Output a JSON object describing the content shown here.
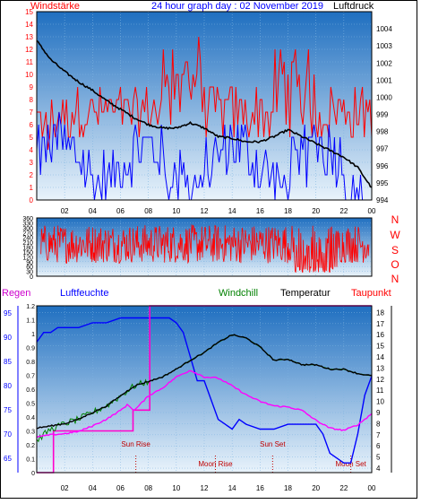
{
  "header": {
    "left_label": "Windstärke",
    "title": "24 hour graph day : 02 November 2019",
    "right_label": "Luftdruck"
  },
  "legend2": {
    "regen": "Regen",
    "luftfeuchte": "Luftfeuchte",
    "windchill": "Windchill",
    "temperatur": "Temperatur",
    "taupunkt": "Taupunkt"
  },
  "directions": [
    "N",
    "W",
    "S",
    "O",
    "N"
  ],
  "events": [
    {
      "label": "Sun Rise",
      "hour": 7.1
    },
    {
      "label": "Moon Rise",
      "hour": 12.8
    },
    {
      "label": "Sun Set",
      "hour": 16.9
    },
    {
      "label": "Moon Set",
      "hour": 22.5
    }
  ],
  "colors": {
    "wind_speed": "#ff0000",
    "wind_gust_base": "#0000ff",
    "pressure": "#000000",
    "direction": "#ff0000",
    "humidity": "#0000ff",
    "rain": "#ff00cc",
    "windchill": "#008000",
    "temperature": "#000000",
    "dewpoint": "#ff00ff",
    "panel_top": "#1f6fc0",
    "panel_bottom": "#e9f3fb"
  },
  "chart_data": [
    {
      "type": "line",
      "x_ticks": [
        "02",
        "04",
        "06",
        "08",
        "10",
        "12",
        "14",
        "16",
        "18",
        "20",
        "22",
        "00"
      ],
      "y_left_ticks": [
        0,
        1,
        2,
        3,
        4,
        5,
        6,
        7,
        8,
        9,
        10,
        11,
        12,
        13,
        14,
        15
      ],
      "y_left_label": "Windstärke",
      "y_left_range": [
        0,
        15
      ],
      "y_right_ticks": [
        994,
        995,
        996,
        997,
        998,
        999,
        1000,
        1001,
        1002,
        1003,
        1004
      ],
      "y_right_label": "Luftdruck",
      "y_right_range": [
        994,
        1005
      ],
      "series": [
        {
          "name": "Luftdruck",
          "axis": "right",
          "hours": [
            0,
            1,
            2,
            3,
            4,
            5,
            6,
            7,
            8,
            9,
            10,
            11,
            12,
            13,
            14,
            15,
            16,
            17,
            18,
            19,
            20,
            21,
            22,
            23,
            24
          ],
          "values": [
            1003.3,
            1002.2,
            1001.5,
            1000.9,
            1000.4,
            999.8,
            999.3,
            998.8,
            998.4,
            998.2,
            998.2,
            998.5,
            998.2,
            997.7,
            997.6,
            997.4,
            997.4,
            997.7,
            998.1,
            997.7,
            997.3,
            996.9,
            996.5,
            995.9,
            994.7
          ]
        }
      ]
    },
    {
      "type": "line",
      "x_ticks": [],
      "y_left_ticks": [
        0,
        30,
        60,
        90,
        120,
        150,
        180,
        210,
        240,
        270,
        300,
        330,
        360
      ],
      "y_left_range": [
        0,
        360
      ],
      "y_right_labels": [
        "N",
        "W",
        "S",
        "O",
        "N"
      ]
    },
    {
      "type": "line",
      "x_ticks": [
        "02",
        "04",
        "06",
        "08",
        "10",
        "12",
        "14",
        "16",
        "18",
        "20",
        "22",
        "00"
      ],
      "y_left_ticks": [
        65,
        70,
        75,
        80,
        85,
        90,
        95
      ],
      "y_left_label": "Luftfeuchte",
      "y_left_range": [
        62,
        96.5
      ],
      "y_rain_ticks": [
        0,
        0.1,
        0.2,
        0.3,
        0.4,
        0.5,
        0.6,
        0.7,
        0.8,
        0.9,
        1,
        1.1,
        1.2
      ],
      "y_rain_label": "Regen",
      "y_rain_range": [
        0,
        1.2
      ],
      "y_right_ticks": [
        4,
        5,
        6,
        7,
        8,
        9,
        10,
        11,
        12,
        13,
        14,
        15,
        16,
        17,
        18
      ],
      "y_right_label": "Temperatur",
      "y_right_range": [
        3.6,
        18.6
      ],
      "series": [
        {
          "name": "Luftfeuchte",
          "hours": [
            0,
            0.5,
            1,
            1.5,
            2,
            3,
            4,
            5,
            6,
            7,
            8,
            8.5,
            9,
            9.5,
            10,
            10.5,
            11,
            11.5,
            12,
            12.5,
            13,
            13.5,
            14,
            14.5,
            15,
            16,
            17,
            18,
            19,
            20,
            20.5,
            21,
            21.5,
            22,
            22.5,
            23,
            23.5,
            24
          ],
          "values": [
            89,
            91,
            91,
            92,
            92,
            92,
            93,
            93,
            94,
            94,
            94,
            94,
            94,
            94,
            93,
            91,
            86,
            81,
            81,
            77,
            73,
            72,
            71,
            73,
            72,
            71,
            71,
            72,
            72,
            72,
            70,
            66,
            65,
            64,
            64,
            70,
            78,
            82
          ]
        },
        {
          "name": "Regen",
          "hours": [
            0,
            1.2,
            1.2,
            6.9,
            6.9,
            7.9,
            7.9,
            8.1,
            8.1,
            24
          ],
          "values": [
            0,
            0,
            0.3,
            0.3,
            0.45,
            0.45,
            0.45,
            0.45,
            1.2,
            1.2
          ]
        },
        {
          "name": "Windchill",
          "hours": [
            0,
            1,
            2,
            3,
            4,
            5,
            6,
            7,
            8,
            9,
            10,
            11,
            12,
            13,
            14,
            15,
            16,
            17,
            18,
            19,
            20,
            21,
            22,
            23,
            24
          ],
          "values": [
            6.5,
            7.5,
            8,
            8.4,
            9,
            9.6,
            10.5,
            11.4,
            11.8,
            12.2,
            12.9,
            13.7,
            14.4,
            15.3,
            16,
            15.7,
            14.9,
            13.7,
            13.8,
            13.3,
            13.3,
            12.9,
            12.9,
            12.5,
            12.3
          ]
        },
        {
          "name": "Temperatur",
          "hours": [
            0,
            1,
            2,
            3,
            4,
            5,
            6,
            7,
            8,
            9,
            10,
            11,
            12,
            13,
            14,
            15,
            16,
            17,
            18,
            19,
            20,
            21,
            22,
            23,
            24
          ],
          "values": [
            7.6,
            7.8,
            8,
            8.4,
            9,
            9.6,
            10.5,
            11.4,
            11.8,
            12.2,
            12.9,
            13.7,
            14.4,
            15.3,
            16,
            15.7,
            14.9,
            13.7,
            13.8,
            13.3,
            13.3,
            12.9,
            12.9,
            12.5,
            12.3
          ]
        },
        {
          "name": "Taupunkt",
          "hours": [
            0,
            1,
            2,
            3,
            4,
            5,
            6,
            6.5,
            7,
            8,
            9,
            10,
            11,
            12,
            13,
            14,
            15,
            16,
            17,
            18,
            19,
            20,
            21,
            22,
            23,
            24
          ],
          "values": [
            6.8,
            7,
            7.1,
            7.3,
            7.8,
            8.4,
            9.2,
            9.7,
            9.2,
            10.5,
            11.2,
            12.2,
            12.8,
            12.2,
            12.1,
            11.4,
            10.6,
            10,
            9.6,
            9.5,
            9.2,
            8.3,
            7.6,
            7.4,
            7.9,
            8.9
          ]
        }
      ]
    }
  ]
}
